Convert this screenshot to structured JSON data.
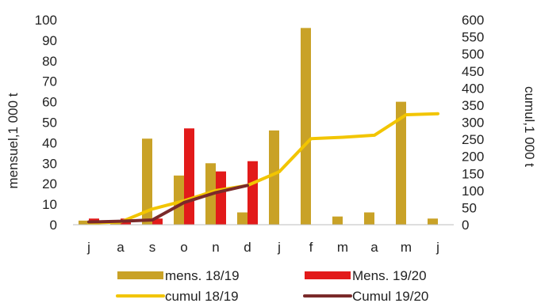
{
  "chart_data": {
    "type": "bar+line",
    "categories": [
      "j",
      "a",
      "s",
      "o",
      "n",
      "d",
      "j",
      "f",
      "m",
      "a",
      "m",
      "j"
    ],
    "ylabel": "mensuel,1 000 t",
    "y2label": "cumul,1 000 t",
    "ylim": [
      0,
      100
    ],
    "yticks": [
      0,
      10,
      20,
      30,
      40,
      50,
      60,
      70,
      80,
      90,
      100
    ],
    "y2lim": [
      0,
      600
    ],
    "y2ticks": [
      0,
      50,
      100,
      150,
      200,
      250,
      300,
      350,
      400,
      450,
      500,
      550,
      600
    ],
    "grid": false,
    "legend_position": "bottom",
    "bar_series": [
      {
        "name": "mens. 18/19",
        "color": "#c9a227",
        "axis": "left",
        "values": [
          2,
          2,
          42,
          24,
          30,
          6,
          46,
          96,
          4,
          6,
          60,
          3
        ]
      },
      {
        "name": "Mens. 19/20",
        "color": "#e21a1a",
        "axis": "left",
        "values": [
          3,
          3,
          3,
          47,
          26,
          31,
          null,
          null,
          null,
          null,
          null,
          null
        ]
      }
    ],
    "line_series": [
      {
        "name": "cumul 18/19",
        "color": "#f2c500",
        "axis": "right",
        "values": [
          5,
          8,
          46,
          70,
          100,
          115,
          155,
          252,
          256,
          262,
          322,
          325
        ]
      },
      {
        "name": "Cumul 19/20",
        "color": "#7a2a2a",
        "axis": "right",
        "values": [
          8,
          10,
          14,
          65,
          94,
          115,
          null,
          null,
          null,
          null,
          null,
          null
        ]
      }
    ]
  }
}
